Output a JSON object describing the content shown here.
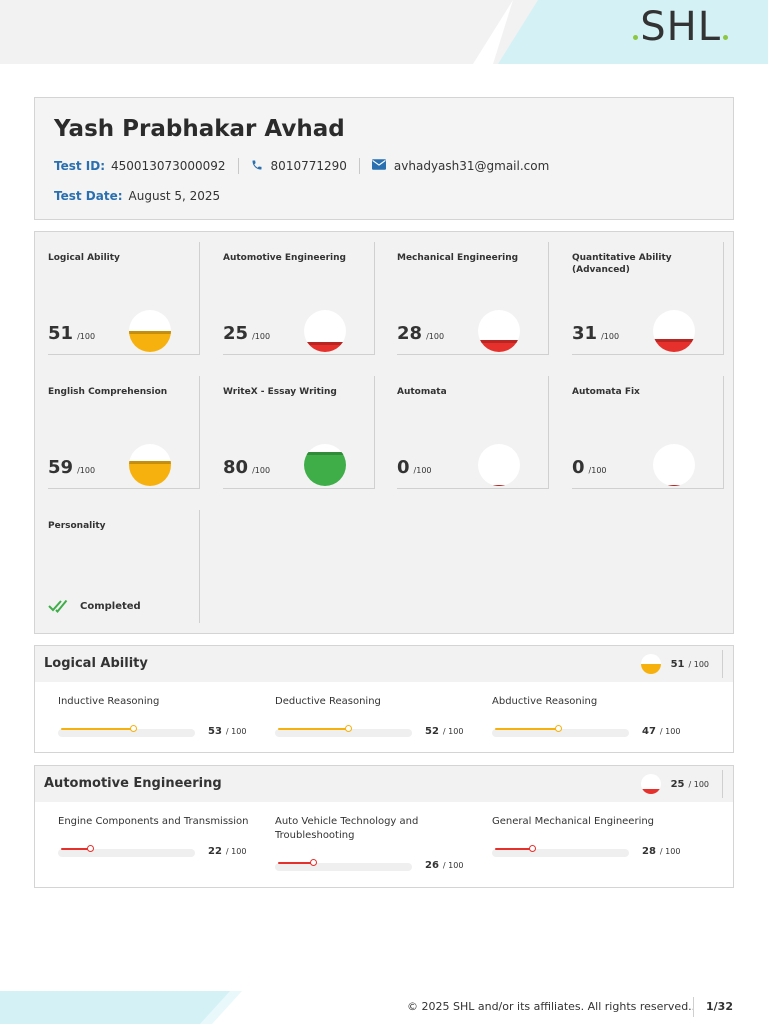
{
  "brand": {
    "logo_text": "SHL"
  },
  "candidate": {
    "name": "Yash Prabhakar Avhad",
    "test_id_label": "Test ID:",
    "test_id": "450013073000092",
    "phone": "8010771290",
    "email": "avhadyash31@gmail.com",
    "test_date_label": "Test Date:",
    "test_date": "August 5, 2025"
  },
  "colors": {
    "accent": "#2a6fb0",
    "yellow": "#f6b10e",
    "red": "#e5302b",
    "green": "#3fae49"
  },
  "tiles": [
    {
      "title": "Logical Ability",
      "score": "51",
      "max": "/100",
      "level": 0.51,
      "color": "#f6b10e"
    },
    {
      "title": "Automotive Engineering",
      "score": "25",
      "max": "/100",
      "level": 0.25,
      "color": "#e5302b"
    },
    {
      "title": "Mechanical Engineering",
      "score": "28",
      "max": "/100",
      "level": 0.28,
      "color": "#e5302b"
    },
    {
      "title": "Quantitative Ability (Advanced)",
      "score": "31",
      "max": "/100",
      "level": 0.31,
      "color": "#e5302b"
    },
    {
      "title": "English Comprehension",
      "score": "59",
      "max": "/100",
      "level": 0.59,
      "color": "#f6b10e"
    },
    {
      "title": "WriteX - Essay Writing",
      "score": "80",
      "max": "/100",
      "level": 0.8,
      "color": "#3fae49"
    },
    {
      "title": "Automata",
      "score": "0",
      "max": "/100",
      "level": 0.0,
      "color": "#e5302b"
    },
    {
      "title": "Automata Fix",
      "score": "0",
      "max": "/100",
      "level": 0.0,
      "color": "#e5302b"
    }
  ],
  "personality": {
    "title": "Personality",
    "status": "Completed"
  },
  "sections": [
    {
      "title": "Logical Ability",
      "score": "51",
      "max": "/ 100",
      "level": 0.51,
      "color": "#f6b10e",
      "subs": [
        {
          "name": "Inductive Reasoning",
          "score": "53",
          "max": "/ 100",
          "value": 53
        },
        {
          "name": "Deductive Reasoning",
          "score": "52",
          "max": "/ 100",
          "value": 52
        },
        {
          "name": "Abductive Reasoning",
          "score": "47",
          "max": "/ 100",
          "value": 47
        }
      ]
    },
    {
      "title": "Automotive Engineering",
      "score": "25",
      "max": "/ 100",
      "level": 0.25,
      "color": "#e5302b",
      "subs": [
        {
          "name": "Engine Components and Transmission",
          "score": "22",
          "max": "/ 100",
          "value": 22
        },
        {
          "name": "Auto Vehicle Technology and Troubleshooting",
          "score": "26",
          "max": "/ 100",
          "value": 26
        },
        {
          "name": "General Mechanical Engineering",
          "score": "28",
          "max": "/ 100",
          "value": 28
        }
      ]
    }
  ],
  "footer": {
    "copyright": "© 2025 SHL and/or its affiliates. All rights reserved..",
    "page": "1/32"
  }
}
